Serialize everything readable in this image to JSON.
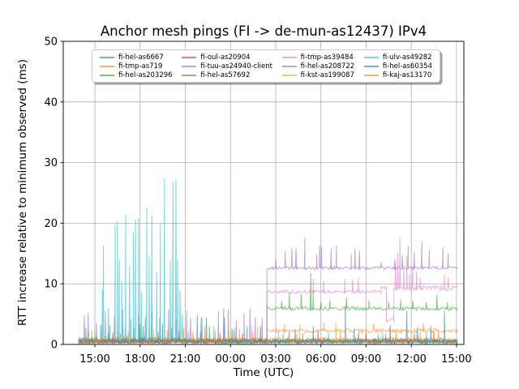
{
  "chart_data": {
    "type": "line",
    "title": "Anchor mesh pings (FI -> de-mun-as12437) IPv4",
    "xlabel": "Time (UTC)",
    "ylabel": "RTT increase relative to minimum observed (ms)",
    "x_unit": "hours from day-1 00:00 UTC (values >24 are next day)",
    "xlim": [
      12.9,
      39.49
    ],
    "ylim": [
      0,
      50
    ],
    "grid": true,
    "grid_color": "#b0b0b0",
    "line_opacity": 0.6,
    "legend_position": "upper center inside axes, 4 columns, fancybox with shadow",
    "xticks": [
      {
        "t": 15,
        "label": "15:00"
      },
      {
        "t": 18,
        "label": "18:00"
      },
      {
        "t": 21,
        "label": "21:00"
      },
      {
        "t": 24,
        "label": "00:00"
      },
      {
        "t": 27,
        "label": "03:00"
      },
      {
        "t": 30,
        "label": "06:00"
      },
      {
        "t": 33,
        "label": "09:00"
      },
      {
        "t": 36,
        "label": "12:00"
      },
      {
        "t": 39,
        "label": "15:00"
      }
    ],
    "yticks": [
      {
        "v": 0,
        "label": "0"
      },
      {
        "v": 10,
        "label": "10"
      },
      {
        "v": 20,
        "label": "20"
      },
      {
        "v": 30,
        "label": "30"
      },
      {
        "v": 40,
        "label": "40"
      },
      {
        "v": 50,
        "label": "50"
      }
    ],
    "series": [
      {
        "name": "fi-hel-as6667",
        "color": "#1f77b4",
        "baseline_segments": [
          [
            13.9,
            39.05,
            0.5,
            0.35
          ]
        ],
        "spikes": [
          [
            15.4,
            3.2
          ],
          [
            17.6,
            2.8
          ],
          [
            19.5,
            3.5
          ],
          [
            21.8,
            4.8
          ],
          [
            23.6,
            4.5
          ],
          [
            25.1,
            3.0
          ],
          [
            28.3,
            2.5
          ],
          [
            31.62,
            6.2
          ],
          [
            35.7,
            5.5
          ],
          [
            38.2,
            5.6
          ]
        ]
      },
      {
        "name": "fi-tmp-as719",
        "color": "#ff7f0e",
        "baseline_segments": [
          [
            13.9,
            26.42,
            0.6,
            0.4
          ],
          [
            26.42,
            39.05,
            2.25,
            0.35
          ]
        ],
        "spikes": [
          [
            14.8,
            2.4
          ],
          [
            16.5,
            2.2
          ],
          [
            18.6,
            2.5
          ],
          [
            20.9,
            2.8
          ],
          [
            22.3,
            3.0
          ],
          [
            24.6,
            2.6
          ],
          [
            25.8,
            2.9
          ],
          [
            27.6,
            3.3
          ],
          [
            30.2,
            3.6
          ],
          [
            33.5,
            3.4
          ],
          [
            36.8,
            3.5
          ]
        ]
      },
      {
        "name": "fi-hel-as203296",
        "color": "#2ca02c",
        "baseline_segments": [
          [
            13.9,
            26.42,
            0.4,
            0.3
          ],
          [
            26.42,
            39.05,
            5.9,
            0.3
          ]
        ],
        "spikes": [
          [
            14.4,
            2.8
          ],
          [
            16.0,
            3.1
          ],
          [
            18.0,
            3.3
          ],
          [
            20.1,
            2.8
          ],
          [
            22.6,
            3.0
          ],
          [
            24.1,
            2.6
          ],
          [
            27.4,
            7.2
          ],
          [
            27.9,
            8.6
          ],
          [
            28.7,
            8.3
          ],
          [
            29.33,
            11.8
          ],
          [
            29.5,
            9.0
          ],
          [
            30.0,
            7.0
          ],
          [
            30.6,
            7.3
          ],
          [
            31.7,
            7.8
          ],
          [
            33.2,
            7.2
          ],
          [
            34.5,
            7.0
          ],
          [
            35.3,
            7.4
          ],
          [
            36.1,
            7.2
          ],
          [
            37.0,
            7.0
          ],
          [
            37.7,
            8.2
          ],
          [
            38.4,
            7.0
          ]
        ]
      },
      {
        "name": "fi-oul-as20904",
        "color": "#d62728",
        "baseline_segments": [
          [
            13.9,
            39.05,
            0.5,
            0.35
          ]
        ],
        "spikes": [
          [
            16.2,
            2.0
          ],
          [
            20.6,
            2.2
          ],
          [
            24.8,
            1.8
          ],
          [
            29.8,
            2.3
          ],
          [
            33.0,
            2.0
          ],
          [
            37.5,
            2.2
          ]
        ]
      },
      {
        "name": "fi-tuu-as24940-client",
        "color": "#9467bd",
        "baseline_segments": [
          [
            13.9,
            26.42,
            0.5,
            0.3
          ],
          [
            26.42,
            39.05,
            12.6,
            0.25
          ]
        ],
        "spikes": [
          [
            14.3,
            4.8
          ],
          [
            14.55,
            5.2
          ],
          [
            15.1,
            3.5
          ],
          [
            15.7,
            5.6
          ],
          [
            16.3,
            4.5
          ],
          [
            16.85,
            5.8
          ],
          [
            17.4,
            4.2
          ],
          [
            17.9,
            5.0
          ],
          [
            18.35,
            4.6
          ],
          [
            18.8,
            5.5
          ],
          [
            19.3,
            4.4
          ],
          [
            19.9,
            5.8
          ],
          [
            20.4,
            4.2
          ],
          [
            21.1,
            5.6
          ],
          [
            21.35,
            4.3
          ],
          [
            22.05,
            4.3
          ],
          [
            23.2,
            5.5
          ],
          [
            23.55,
            6.0
          ],
          [
            23.85,
            5.8
          ],
          [
            24.4,
            4.0
          ],
          [
            24.9,
            5.2
          ],
          [
            25.3,
            5.9
          ],
          [
            25.65,
            4.5
          ],
          [
            26.1,
            4.4
          ],
          [
            27.0,
            14.0
          ],
          [
            27.63,
            15.4
          ],
          [
            28.08,
            15.9
          ],
          [
            28.35,
            15.9
          ],
          [
            28.94,
            17.7
          ],
          [
            29.72,
            14.8
          ],
          [
            29.92,
            16.3
          ],
          [
            30.05,
            16.0
          ],
          [
            30.68,
            15.9
          ],
          [
            31.04,
            16.3
          ],
          [
            32.02,
            14.8
          ],
          [
            32.26,
            15.8
          ],
          [
            32.56,
            15.5
          ],
          [
            34.0,
            13.6
          ],
          [
            34.9,
            14.0
          ],
          [
            35.4,
            14.7
          ],
          [
            35.8,
            16.2
          ],
          [
            36.2,
            15.2
          ],
          [
            36.7,
            17.0
          ],
          [
            37.2,
            15.5
          ],
          [
            38.1,
            16.0
          ],
          [
            38.45,
            15.0
          ]
        ]
      },
      {
        "name": "fi-hel-as57692",
        "color": "#8c564b",
        "baseline_segments": [
          [
            13.9,
            39.05,
            0.5,
            0.35
          ]
        ],
        "spikes": [
          [
            15.9,
            1.8
          ],
          [
            19.2,
            2.0
          ],
          [
            23.3,
            1.9
          ],
          [
            27.9,
            2.1
          ],
          [
            32.5,
            2.0
          ],
          [
            36.2,
            1.8
          ]
        ]
      },
      {
        "name": "fi-tmp-as39484",
        "color": "#e377c2",
        "baseline_segments": [
          [
            13.9,
            26.42,
            0.4,
            0.25
          ],
          [
            26.42,
            34.0,
            8.7,
            0.3
          ],
          [
            34.0,
            34.35,
            9.4,
            0.3
          ],
          [
            34.35,
            34.85,
            4.0,
            0.5
          ],
          [
            34.85,
            39.05,
            9.3,
            0.4
          ]
        ],
        "spikes": [
          [
            17.0,
            2.5
          ],
          [
            21.2,
            2.2
          ],
          [
            24.3,
            2.8
          ],
          [
            25.4,
            3.0
          ],
          [
            29.5,
            10.8
          ],
          [
            30.2,
            10.5
          ],
          [
            31.6,
            10.8
          ],
          [
            32.1,
            10.6
          ],
          [
            32.5,
            11.0
          ],
          [
            34.95,
            13.5
          ],
          [
            35.1,
            15.0
          ],
          [
            35.25,
            17.7
          ],
          [
            35.5,
            12.5
          ],
          [
            35.7,
            14.5
          ],
          [
            35.9,
            11.5
          ],
          [
            36.1,
            13.0
          ],
          [
            36.35,
            12.0
          ],
          [
            36.6,
            11.0
          ],
          [
            38.2,
            11.5
          ],
          [
            38.45,
            11.0
          ]
        ]
      },
      {
        "name": "fi-hel-as208722",
        "color": "#7f7f7f",
        "baseline_segments": [
          [
            13.9,
            39.05,
            0.5,
            0.3
          ]
        ],
        "spikes": [
          [
            16.7,
            1.8
          ],
          [
            22.0,
            2.0
          ],
          [
            28.8,
            1.9
          ],
          [
            34.3,
            1.8
          ]
        ]
      },
      {
        "name": "fi-kst-as199087",
        "color": "#bcbd22",
        "baseline_segments": [
          [
            13.9,
            39.05,
            0.55,
            0.35
          ]
        ],
        "spikes": [
          [
            15.0,
            2.4
          ],
          [
            18.9,
            2.6
          ],
          [
            23.9,
            2.3
          ],
          [
            27.2,
            2.6
          ],
          [
            28.6,
            3.4
          ],
          [
            31.0,
            3.6
          ],
          [
            34.1,
            2.5
          ],
          [
            36.6,
            2.7
          ]
        ]
      },
      {
        "name": "fi-ulv-as49282",
        "color": "#17becf",
        "baseline_segments": [
          [
            13.9,
            21.3,
            0.8,
            0.5
          ],
          [
            21.3,
            39.05,
            0.5,
            0.3
          ]
        ],
        "spikes": [
          [
            15.5,
            9.0
          ],
          [
            15.57,
            16.3
          ],
          [
            15.9,
            6.0
          ],
          [
            16.35,
            19.8
          ],
          [
            16.5,
            20.3
          ],
          [
            16.63,
            14.0
          ],
          [
            16.78,
            10.5
          ],
          [
            17.05,
            21.4
          ],
          [
            17.3,
            13.0
          ],
          [
            17.55,
            18.6
          ],
          [
            17.7,
            20.6
          ],
          [
            17.9,
            20.8
          ],
          [
            18.1,
            8.5
          ],
          [
            18.45,
            22.6
          ],
          [
            18.6,
            14.5
          ],
          [
            18.78,
            21.3
          ],
          [
            19.1,
            12.0
          ],
          [
            19.35,
            20.0
          ],
          [
            19.62,
            27.4
          ],
          [
            20.0,
            13.8
          ],
          [
            20.18,
            26.9
          ],
          [
            20.38,
            27.2
          ],
          [
            20.5,
            14.0
          ],
          [
            20.65,
            9.0
          ],
          [
            20.8,
            5.0
          ],
          [
            22.1,
            4.5
          ],
          [
            22.9,
            3.0
          ],
          [
            24.2,
            2.5
          ],
          [
            27.5,
            1.8
          ],
          [
            30.5,
            2.0
          ],
          [
            33.8,
            1.7
          ],
          [
            37.0,
            2.0
          ]
        ]
      },
      {
        "name": "fi-hel-as60354",
        "color": "#1f77b4",
        "baseline_segments": [
          [
            13.9,
            39.05,
            0.6,
            0.4
          ]
        ],
        "spikes": [
          [
            18.2,
            3.0
          ],
          [
            22.4,
            4.4
          ],
          [
            26.0,
            3.0
          ],
          [
            29.5,
            3.0
          ],
          [
            32.2,
            2.6
          ],
          [
            34.6,
            3.2
          ],
          [
            36.4,
            2.8
          ],
          [
            37.3,
            3.0
          ]
        ]
      },
      {
        "name": "fi-kaj-as13170",
        "color": "#ff7f0e",
        "baseline_segments": [
          [
            13.9,
            39.05,
            0.7,
            0.45
          ]
        ],
        "spikes": [
          [
            14.6,
            2.0
          ],
          [
            17.2,
            2.2
          ],
          [
            19.8,
            2.4
          ],
          [
            21.5,
            2.1
          ],
          [
            23.0,
            2.2
          ],
          [
            25.5,
            2.0
          ],
          [
            28.4,
            1.8
          ],
          [
            31.3,
            2.0
          ],
          [
            35.0,
            1.9
          ],
          [
            37.8,
            2.1
          ]
        ]
      }
    ],
    "legend_columns": 4,
    "legend_rows": 3
  }
}
